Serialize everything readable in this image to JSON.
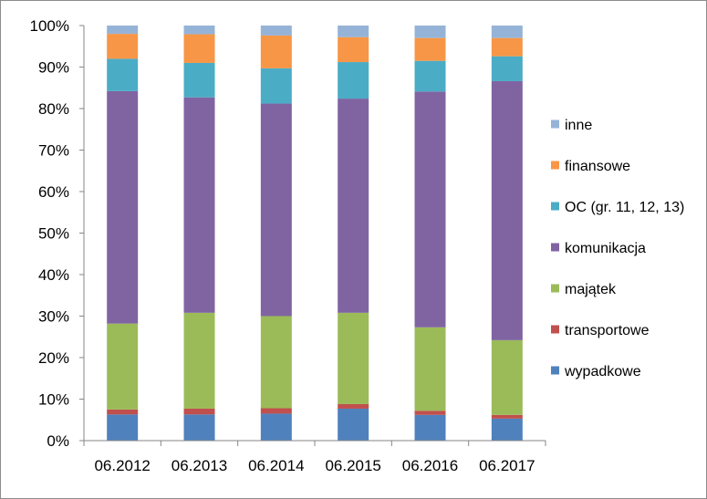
{
  "chart_data": {
    "type": "bar",
    "stacked": true,
    "percent": true,
    "categories": [
      "06.2012",
      "06.2013",
      "06.2014",
      "06.2015",
      "06.2016",
      "06.2017"
    ],
    "ylim": [
      0,
      100
    ],
    "yticks": [
      0,
      10,
      20,
      30,
      40,
      50,
      60,
      70,
      80,
      90,
      100
    ],
    "ytick_labels": [
      "0%",
      "10%",
      "20%",
      "30%",
      "40%",
      "50%",
      "60%",
      "70%",
      "80%",
      "90%",
      "100%"
    ],
    "grid": false,
    "legend_position": "right",
    "title": "",
    "xlabel": "",
    "ylabel": "",
    "series": [
      {
        "name": "wypadkowe",
        "color": "#4F81BD",
        "values": [
          6.3,
          6.3,
          6.5,
          7.7,
          6.2,
          5.3
        ]
      },
      {
        "name": "transportowe",
        "color": "#C0504D",
        "values": [
          1.2,
          1.4,
          1.3,
          1.1,
          1.0,
          0.9
        ]
      },
      {
        "name": "majątek",
        "color": "#9BBB59",
        "values": [
          20.7,
          23.1,
          22.2,
          22.0,
          20.1,
          18.0
        ]
      },
      {
        "name": "komunikacja",
        "color": "#8064A2",
        "values": [
          56.0,
          51.9,
          51.2,
          51.6,
          56.8,
          62.4
        ]
      },
      {
        "name": "OC (gr. 11, 12, 13)",
        "color": "#4BACC6",
        "values": [
          7.8,
          8.3,
          8.5,
          8.8,
          7.4,
          6.0
        ]
      },
      {
        "name": "finansowe",
        "color": "#F79646",
        "values": [
          6.0,
          6.9,
          7.9,
          6.0,
          5.5,
          4.4
        ]
      },
      {
        "name": "inne",
        "color": "#95B3D7",
        "values": [
          2.0,
          2.1,
          2.4,
          2.8,
          3.0,
          3.0
        ]
      }
    ]
  }
}
